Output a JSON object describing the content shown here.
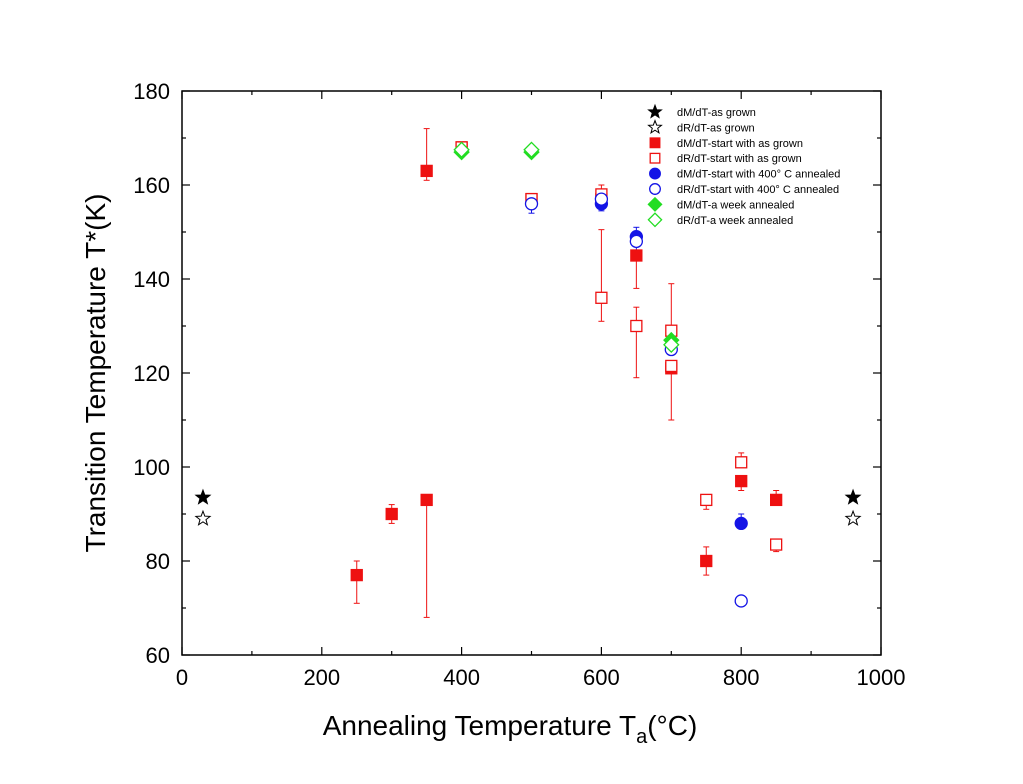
{
  "chart_data": {
    "type": "scatter",
    "title": "",
    "xlabel": "Annealing Temperature T",
    "xlabel_sub": "a",
    "xlabel_suffix": "(°C)",
    "ylabel": "Transition Temperature T*(K)",
    "xlim": [
      0,
      1000
    ],
    "ylim": [
      60,
      180
    ],
    "xticks": [
      0,
      200,
      400,
      600,
      800,
      1000
    ],
    "yticks": [
      60,
      80,
      100,
      120,
      140,
      160,
      180
    ],
    "xtick_labels": [
      "0",
      "200",
      "400",
      "600",
      "800",
      "1000"
    ],
    "ytick_labels": [
      "60",
      "80",
      "100",
      "120",
      "140",
      "160",
      "180"
    ],
    "legend_position": "top-right",
    "series": [
      {
        "name": "dM/dT-as grown",
        "marker": "star",
        "filled": true,
        "color": "#000000",
        "points": [
          {
            "x": 30,
            "y": 93.5
          },
          {
            "x": 960,
            "y": 93.5
          }
        ]
      },
      {
        "name": "dR/dT-as grown",
        "marker": "star",
        "filled": false,
        "color": "#000000",
        "points": [
          {
            "x": 30,
            "y": 89
          },
          {
            "x": 960,
            "y": 89
          }
        ]
      },
      {
        "name": "dM/dT-start with as grown",
        "marker": "square",
        "filled": true,
        "color": "#ee1111",
        "points": [
          {
            "x": 250,
            "y": 77,
            "err_low": 71,
            "err_high": 80
          },
          {
            "x": 300,
            "y": 90,
            "err_low": 88,
            "err_high": 92
          },
          {
            "x": 350,
            "y": 93,
            "err_low": 68,
            "err_high": 93
          },
          {
            "x": 350,
            "y": 163,
            "err_low": 161,
            "err_high": 172
          },
          {
            "x": 400,
            "y": 168,
            "err_low": 166,
            "err_high": 168
          },
          {
            "x": 500,
            "y": 157
          },
          {
            "x": 600,
            "y": 157
          },
          {
            "x": 650,
            "y": 145,
            "err_low": 138,
            "err_high": 145
          },
          {
            "x": 700,
            "y": 121,
            "err_low": 110,
            "err_high": 121
          },
          {
            "x": 750,
            "y": 80,
            "err_low": 77,
            "err_high": 83
          },
          {
            "x": 800,
            "y": 97,
            "err_low": 95,
            "err_high": 97
          },
          {
            "x": 850,
            "y": 93,
            "err_low": 93,
            "err_high": 95
          }
        ]
      },
      {
        "name": "dR/dT-start with as grown",
        "marker": "square",
        "filled": false,
        "color": "#ee1111",
        "points": [
          {
            "x": 400,
            "y": 168
          },
          {
            "x": 500,
            "y": 157
          },
          {
            "x": 600,
            "y": 158,
            "err_low": 158,
            "err_high": 160
          },
          {
            "x": 600,
            "y": 136,
            "err_low": 131,
            "err_high": 150.5
          },
          {
            "x": 650,
            "y": 130,
            "err_low": 119,
            "err_high": 134
          },
          {
            "x": 700,
            "y": 129,
            "err_low": 126,
            "err_high": 139
          },
          {
            "x": 700,
            "y": 121.5
          },
          {
            "x": 750,
            "y": 93,
            "err_low": 91,
            "err_high": 93
          },
          {
            "x": 800,
            "y": 101,
            "err_low": 101,
            "err_high": 103
          },
          {
            "x": 850,
            "y": 83.5,
            "err_low": 82,
            "err_high": 83.5
          }
        ]
      },
      {
        "name": "dM/dT-start with 400° C annealed",
        "marker": "circle",
        "filled": true,
        "color": "#1414e6",
        "points": [
          {
            "x": 600,
            "y": 156,
            "err_low": 154.5,
            "err_high": 156
          },
          {
            "x": 650,
            "y": 149,
            "err_low": 149,
            "err_high": 151
          },
          {
            "x": 800,
            "y": 88,
            "err_low": 88,
            "err_high": 90
          }
        ]
      },
      {
        "name": "dR/dT-start with 400° C annealed",
        "marker": "circle",
        "filled": false,
        "color": "#1414e6",
        "points": [
          {
            "x": 500,
            "y": 156,
            "err_low": 154,
            "err_high": 156
          },
          {
            "x": 600,
            "y": 157
          },
          {
            "x": 650,
            "y": 148,
            "err_low": 146,
            "err_high": 148
          },
          {
            "x": 700,
            "y": 125
          },
          {
            "x": 800,
            "y": 71.5
          }
        ]
      },
      {
        "name": "dM/dT-a week annealed",
        "marker": "diamond",
        "filled": true,
        "color": "#22dd22",
        "points": [
          {
            "x": 400,
            "y": 167
          },
          {
            "x": 500,
            "y": 167
          },
          {
            "x": 700,
            "y": 127
          }
        ]
      },
      {
        "name": "dR/dT-a week annealed",
        "marker": "diamond",
        "filled": false,
        "color": "#22dd22",
        "points": [
          {
            "x": 400,
            "y": 167.5
          },
          {
            "x": 500,
            "y": 167.5
          },
          {
            "x": 700,
            "y": 126
          }
        ]
      }
    ]
  }
}
